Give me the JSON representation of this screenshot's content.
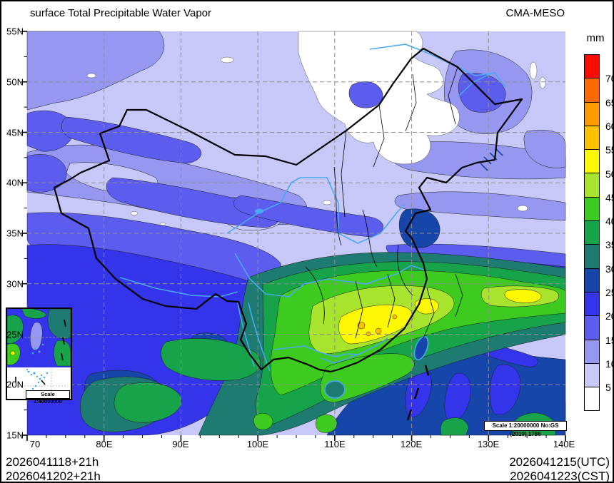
{
  "header": {
    "title": "surface Total Precipitable Water Vapor",
    "model": "CMA-MESO"
  },
  "colorbar": {
    "unit": "mm",
    "levels": [
      5,
      10,
      15,
      20,
      25,
      30,
      35,
      40,
      45,
      50,
      55,
      60,
      65,
      70
    ],
    "colors": [
      "#ffffff",
      "#c7c8f7",
      "#9697f0",
      "#5c5cee",
      "#3434ea",
      "#1746ab",
      "#1d7b72",
      "#16a34a",
      "#3dcb1f",
      "#a8e32d",
      "#fcf804",
      "#fdc101",
      "#fd9b03",
      "#fd6903",
      "#f90d00"
    ]
  },
  "axes": {
    "x_ticks": [
      "70",
      "80E",
      "90E",
      "100E",
      "110E",
      "120E",
      "130E",
      "140E"
    ],
    "y_ticks": [
      "55N",
      "50N",
      "45N",
      "40N",
      "35N",
      "30N",
      "25N",
      "20N",
      "15N"
    ]
  },
  "footer": {
    "run_line1": "2026041118+21h",
    "run_line2": "2026041202+21h",
    "valid_utc": "2026041215(UTC)",
    "valid_cst": "2026041223(CST)"
  },
  "scale_labels": {
    "main": "Scale 1:20000000 No:GS (2019) 1786",
    "inset": "Scale 1:40000000"
  }
}
